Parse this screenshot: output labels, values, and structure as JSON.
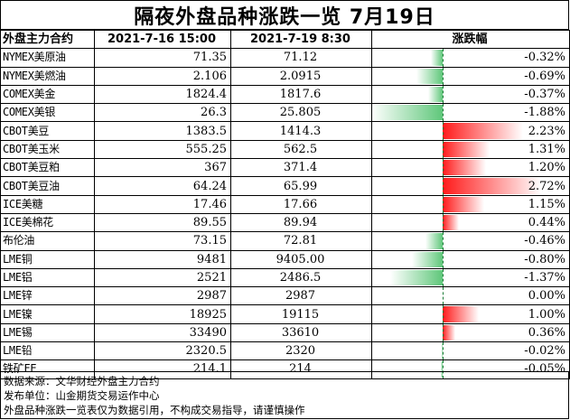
{
  "title": "隔夜外盘品种涨跌一览 7月19日",
  "headers": {
    "name": "外盘主力合约",
    "prev": "2021-7-16 15:00",
    "curr": "2021-7-19 8:30",
    "change": "涨跌幅"
  },
  "colors": {
    "up": "#ff1a1a",
    "down": "#5fc77a",
    "zero_line": "#1a7a35"
  },
  "rows": [
    {
      "name": "NYMEX美原油",
      "prev": "71.35",
      "curr": "71.12",
      "change": "-0.32%",
      "pct": -0.32
    },
    {
      "name": "NYMEX美燃油",
      "prev": "2.106",
      "curr": "2.0915",
      "change": "-0.69%",
      "pct": -0.69
    },
    {
      "name": "COMEX美金",
      "prev": "1824.4",
      "curr": "1817.6",
      "change": "-0.37%",
      "pct": -0.37
    },
    {
      "name": "COMEX美银",
      "prev": "26.3",
      "curr": "25.805",
      "change": "-1.88%",
      "pct": -1.88
    },
    {
      "name": "CBOT美豆",
      "prev": "1383.5",
      "curr": "1414.3",
      "change": "2.23%",
      "pct": 2.23
    },
    {
      "name": "CBOT美玉米",
      "prev": "555.25",
      "curr": "562.5",
      "change": "1.31%",
      "pct": 1.31
    },
    {
      "name": "CBOT美豆粕",
      "prev": "367",
      "curr": "371.4",
      "change": "1.20%",
      "pct": 1.2
    },
    {
      "name": "CBOT美豆油",
      "prev": "64.24",
      "curr": "65.99",
      "change": "2.72%",
      "pct": 2.72
    },
    {
      "name": "ICE美糖",
      "prev": "17.46",
      "curr": "17.66",
      "change": "1.15%",
      "pct": 1.15
    },
    {
      "name": "ICE美棉花",
      "prev": "89.55",
      "curr": "89.94",
      "change": "0.44%",
      "pct": 0.44
    },
    {
      "name": "布伦油",
      "prev": "73.15",
      "curr": "72.81",
      "change": "-0.46%",
      "pct": -0.46
    },
    {
      "name": "LME铜",
      "prev": "9481",
      "curr": "9405.00",
      "change": "-0.80%",
      "pct": -0.8
    },
    {
      "name": "LME铝",
      "prev": "2521",
      "curr": "2486.5",
      "change": "-1.37%",
      "pct": -1.37
    },
    {
      "name": "LME锌",
      "prev": "2987",
      "curr": "2987",
      "change": "0.00%",
      "pct": 0.0
    },
    {
      "name": "LME镍",
      "prev": "18925",
      "curr": "19115",
      "change": "1.00%",
      "pct": 1.0
    },
    {
      "name": "LME锡",
      "prev": "33490",
      "curr": "33610",
      "change": "0.36%",
      "pct": 0.36
    },
    {
      "name": "LME铅",
      "prev": "2320.5",
      "curr": "2320",
      "change": "-0.02%",
      "pct": -0.02
    },
    {
      "name": "铁矿FE",
      "prev": "214.1",
      "curr": "214",
      "change": "-0.05%",
      "pct": -0.05
    }
  ],
  "footer": {
    "line1": "数据来源：文华财经外盘主力合约",
    "line2": "发布单位：山金期货交易运作中心",
    "line3": "外盘品种涨跌一览表仅为数据引用，不构成交易指导，请谨慎操作"
  }
}
